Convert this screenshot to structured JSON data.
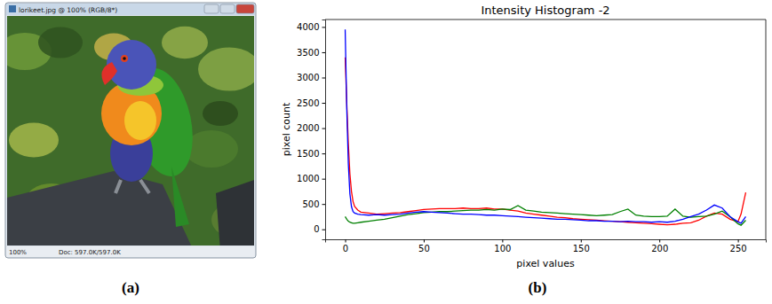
{
  "panels": {
    "a": {
      "label": "(a)",
      "window_title": "lorikeet.jpg @ 100% (RGB/8*)",
      "zoom": "100%",
      "doc_info": "Doc: 597.0K/597.0K"
    },
    "b": {
      "label": "(b)"
    }
  },
  "chart_data": {
    "type": "line",
    "title": "Intensity Histogram -2",
    "x_label": "pixel values",
    "y_label": "pixel count",
    "x": [
      0,
      1,
      2,
      3,
      4,
      5,
      6,
      8,
      10,
      15,
      20,
      25,
      30,
      35,
      40,
      45,
      50,
      55,
      60,
      65,
      70,
      75,
      80,
      85,
      90,
      95,
      100,
      105,
      110,
      115,
      120,
      125,
      130,
      135,
      140,
      145,
      150,
      155,
      160,
      165,
      170,
      175,
      180,
      185,
      190,
      195,
      200,
      205,
      210,
      215,
      220,
      225,
      230,
      235,
      240,
      245,
      250,
      252,
      255
    ],
    "series": [
      {
        "color": "#ff0000",
        "values": [
          3400,
          2500,
          1700,
          1100,
          750,
          550,
          450,
          380,
          340,
          320,
          300,
          310,
          320,
          330,
          350,
          370,
          390,
          400,
          410,
          410,
          410,
          420,
          410,
          410,
          420,
          400,
          400,
          380,
          360,
          320,
          300,
          280,
          260,
          240,
          230,
          210,
          200,
          190,
          180,
          170,
          160,
          150,
          140,
          130,
          120,
          110,
          100,
          90,
          100,
          120,
          130,
          180,
          260,
          320,
          300,
          200,
          150,
          300,
          730
        ]
      },
      {
        "color": "#008000",
        "values": [
          250,
          200,
          160,
          140,
          130,
          120,
          120,
          130,
          140,
          160,
          180,
          200,
          230,
          260,
          290,
          310,
          330,
          340,
          350,
          350,
          360,
          370,
          380,
          380,
          390,
          380,
          400,
          390,
          470,
          380,
          360,
          340,
          330,
          320,
          310,
          300,
          290,
          280,
          270,
          280,
          290,
          350,
          400,
          280,
          260,
          250,
          250,
          260,
          400,
          260,
          240,
          250,
          260,
          300,
          360,
          250,
          110,
          80,
          180
        ]
      },
      {
        "color": "#0000ff",
        "values": [
          3950,
          2400,
          1300,
          700,
          450,
          350,
          320,
          300,
          290,
          280,
          290,
          280,
          290,
          300,
          320,
          340,
          350,
          340,
          330,
          320,
          310,
          300,
          300,
          290,
          280,
          280,
          270,
          260,
          250,
          240,
          230,
          220,
          210,
          200,
          200,
          190,
          180,
          170,
          170,
          160,
          160,
          150,
          160,
          150,
          150,
          140,
          150,
          140,
          160,
          200,
          250,
          300,
          380,
          480,
          420,
          250,
          150,
          120,
          250
        ]
      }
    ],
    "xlim": [
      -12.75,
      267.75
    ],
    "ylim": [
      -197.5,
      4147.5
    ],
    "xticks": [
      0,
      50,
      100,
      150,
      200,
      250
    ],
    "yticks": [
      0,
      500,
      1000,
      1500,
      2000,
      2500,
      3000,
      3500,
      4000
    ],
    "grid": false
  }
}
